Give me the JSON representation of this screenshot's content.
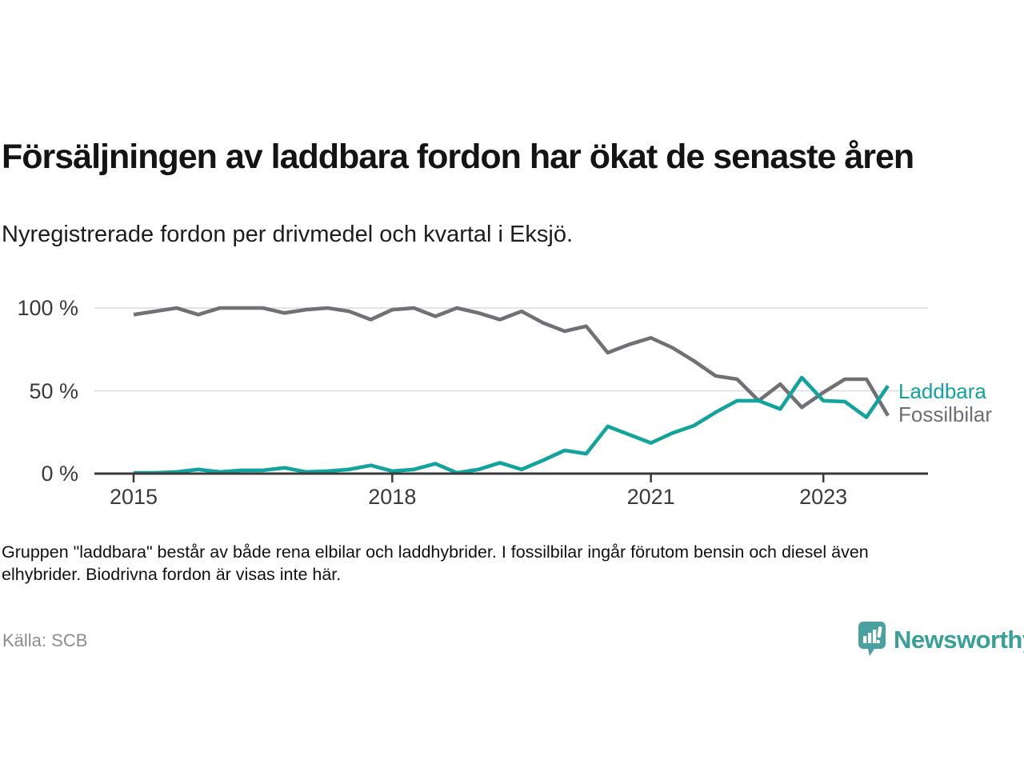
{
  "title": "Försäljningen av laddbara fordon har ökat de senaste åren",
  "subtitle": "Nyregistrerade fordon per drivmedel och kvartal i Eksjö.",
  "footnote_lines": [
    "Gruppen \"laddbara\" består av både rena elbilar och laddhybrider. I fossilbilar ingår förutom bensin och diesel även",
    "elhybrider. Biodrivna fordon är visas inte här."
  ],
  "source": "Källa: SCB",
  "branding": {
    "name": "Newsworthy",
    "icon": "newsworthy-chart-bubble-icon",
    "icon_color": "#4aa1a1",
    "text_color": "#38a099"
  },
  "chart_data": {
    "type": "line",
    "title": "Försäljningen av laddbara fordon har ökat de senaste åren",
    "subtitle": "Nyregistrerade fordon per drivmedel och kvartal i Eksjö.",
    "x_unit": "quarter",
    "x_start": "2015 Q1",
    "x_end": "2023 Q4",
    "x_tick_years": [
      2015,
      2018,
      2021,
      2023
    ],
    "x_tick_labels": [
      "2015",
      "2018",
      "2021",
      "2023"
    ],
    "y_tick_labels": [
      "100 %",
      "50 %",
      "0 %"
    ],
    "y_tick_values": [
      100,
      50,
      0
    ],
    "ylim": [
      0,
      100
    ],
    "grid": "horizontal",
    "legend_position": "right-of-line-end",
    "axis_color": "#3a3a3e",
    "grid_color": "#dcdcdc",
    "series": [
      {
        "name": "Fossilbilar",
        "color": "#717175",
        "values": [
          96,
          98,
          100,
          96,
          100,
          100,
          100,
          97,
          99,
          100,
          98,
          93,
          99,
          100,
          95,
          100,
          97,
          93,
          98,
          91,
          86,
          89,
          73,
          78,
          82,
          76,
          68,
          59,
          57,
          44,
          54,
          40,
          49,
          57,
          57,
          35
        ]
      },
      {
        "name": "Laddbara",
        "color": "#12a49c",
        "values": [
          0.5,
          0.5,
          1,
          2.5,
          1,
          2,
          2,
          3.5,
          1,
          1.5,
          2.5,
          5,
          1.5,
          2.5,
          6,
          0.5,
          2.5,
          6.5,
          2.5,
          8,
          14,
          12,
          28.5,
          23.5,
          18.5,
          24.5,
          29,
          37,
          44,
          44,
          39,
          58,
          44,
          43.5,
          34,
          53
        ]
      }
    ]
  }
}
